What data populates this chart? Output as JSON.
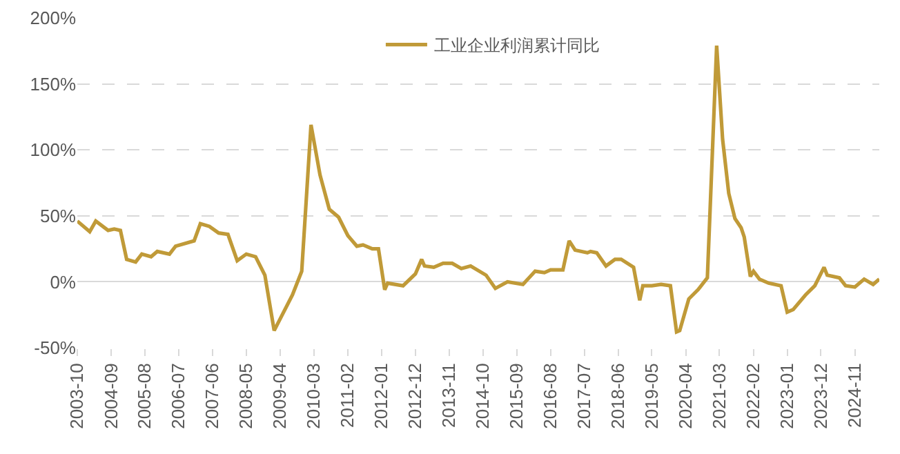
{
  "chart_data": {
    "type": "line",
    "x": [
      "2003-10",
      "2004-02",
      "2004-04",
      "2004-08",
      "2004-10",
      "2004-12",
      "2005-02",
      "2005-05",
      "2005-07",
      "2005-10",
      "2005-12",
      "2006-04",
      "2006-06",
      "2006-12",
      "2007-02",
      "2007-05",
      "2007-08",
      "2007-11",
      "2008-02",
      "2008-05",
      "2008-08",
      "2008-11",
      "2009-02",
      "2009-08",
      "2009-11",
      "2010-02",
      "2010-05",
      "2010-08",
      "2010-11",
      "2011-02",
      "2011-05",
      "2011-07",
      "2011-10",
      "2011-12",
      "2012-02",
      "2012-03",
      "2012-08",
      "2012-12",
      "2013-02",
      "2013-03",
      "2013-06",
      "2013-09",
      "2013-12",
      "2014-03",
      "2014-06",
      "2014-11",
      "2015-02",
      "2015-06",
      "2015-11",
      "2016-03",
      "2016-06",
      "2016-08",
      "2016-12",
      "2017-02",
      "2017-04",
      "2017-08",
      "2017-09",
      "2017-11",
      "2018-02",
      "2018-05",
      "2018-07",
      "2018-11",
      "2019-01",
      "2019-02",
      "2019-05",
      "2019-08",
      "2019-11",
      "2020-01",
      "2020-02",
      "2020-05",
      "2020-08",
      "2020-11",
      "2021-02",
      "2021-04",
      "2021-06",
      "2021-08",
      "2021-10",
      "2021-11",
      "2022-01",
      "2022-02",
      "2022-04",
      "2022-07",
      "2022-11",
      "2023-01",
      "2023-03",
      "2023-07",
      "2023-10",
      "2024-01",
      "2024-02",
      "2024-06",
      "2024-08",
      "2024-11",
      "2025-02",
      "2025-05",
      "2025-07"
    ],
    "series": [
      {
        "name": "工业企业利润累计同比",
        "color": "#c09a38",
        "values": [
          46,
          38,
          46,
          39,
          40,
          39,
          17,
          15,
          21,
          19,
          23,
          21,
          27,
          31,
          44,
          42,
          37,
          36,
          16,
          21,
          19,
          5,
          -37,
          -10,
          8,
          119,
          81,
          55,
          49,
          35,
          27,
          28,
          25,
          25,
          -6,
          -1,
          -3,
          6,
          17,
          12,
          11,
          14,
          14,
          10,
          12,
          5,
          -5,
          0,
          -2,
          8,
          7,
          9,
          9,
          31,
          24,
          22,
          23,
          22,
          12,
          17,
          17,
          11,
          -14,
          -3,
          -3,
          -2,
          -3,
          -38,
          -37,
          -13,
          -6,
          3,
          179,
          108,
          67,
          48,
          41,
          34,
          4,
          8,
          2,
          -1,
          -3,
          -23,
          -21,
          -10,
          -3,
          11,
          5,
          3,
          -3,
          -4,
          2,
          -2,
          2
        ]
      }
    ],
    "xlim": [
      "2003-10",
      "2025-07"
    ],
    "xticks": [
      "2003-10",
      "2004-09",
      "2005-08",
      "2006-07",
      "2007-06",
      "2008-05",
      "2009-04",
      "2010-03",
      "2011-02",
      "2012-01",
      "2012-12",
      "2013-11",
      "2014-10",
      "2015-09",
      "2016-08",
      "2017-07",
      "2018-06",
      "2019-05",
      "2020-04",
      "2021-03",
      "2022-02",
      "2023-01",
      "2023-12",
      "2024-11"
    ],
    "ylim": [
      -50,
      200
    ],
    "yticks": [
      {
        "value": -50,
        "label": "-50%"
      },
      {
        "value": 0,
        "label": "0%"
      },
      {
        "value": 50,
        "label": "50%"
      },
      {
        "value": 100,
        "label": "100%"
      },
      {
        "value": 150,
        "label": "150%"
      },
      {
        "value": 200,
        "label": "200%"
      }
    ],
    "grid": "y",
    "legend": "top right",
    "marker": "none",
    "line_style": "solid"
  }
}
